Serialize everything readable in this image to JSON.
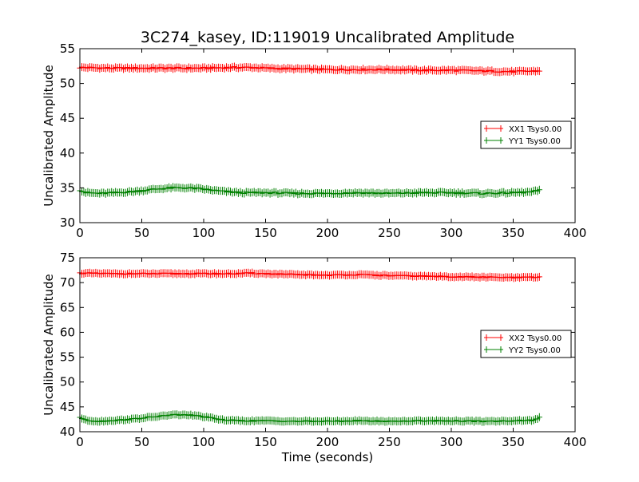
{
  "figure": {
    "title": "3C274_kasey, ID:119019 Uncalibrated Amplitude",
    "xlabel": "Time (seconds)"
  },
  "colors": {
    "red_series": "#ff0000",
    "green_series": "#008000",
    "axes": "#000000",
    "background": "#ffffff"
  },
  "chart_data": [
    {
      "type": "line",
      "marker": "plus",
      "ylabel": "Uncalibrated Amplitude",
      "xlim": [
        0,
        400
      ],
      "ylim": [
        30,
        55
      ],
      "xticks": [
        0,
        50,
        100,
        150,
        200,
        250,
        300,
        350,
        400
      ],
      "yticks": [
        30,
        35,
        40,
        45,
        50,
        55
      ],
      "legend_position": "right",
      "grid": false,
      "x_range": [
        0,
        372
      ],
      "series": [
        {
          "name": "XX1 Tsys0.00",
          "color": "#ff0000",
          "x": [
            0,
            25,
            50,
            75,
            100,
            125,
            140,
            150,
            175,
            200,
            225,
            250,
            275,
            300,
            325,
            350,
            372
          ],
          "y": [
            52.3,
            52.2,
            52.2,
            52.2,
            52.2,
            52.3,
            52.3,
            52.2,
            52.1,
            52.0,
            52.0,
            52.0,
            51.9,
            51.9,
            51.8,
            51.7,
            51.8
          ]
        },
        {
          "name": "YY1 Tsys0.00",
          "color": "#008000",
          "x": [
            0,
            5,
            15,
            30,
            45,
            60,
            75,
            85,
            95,
            105,
            115,
            130,
            150,
            175,
            200,
            225,
            250,
            275,
            300,
            325,
            350,
            365,
            372
          ],
          "y": [
            34.7,
            34.3,
            34.2,
            34.3,
            34.5,
            34.8,
            35.0,
            35.0,
            34.9,
            34.7,
            34.5,
            34.3,
            34.3,
            34.2,
            34.2,
            34.3,
            34.2,
            34.3,
            34.3,
            34.2,
            34.3,
            34.4,
            34.7
          ]
        }
      ]
    },
    {
      "type": "line",
      "marker": "plus",
      "ylabel": "Uncalibrated Amplitude",
      "xlabel": "Time (seconds)",
      "xlim": [
        0,
        400
      ],
      "ylim": [
        40,
        75
      ],
      "xticks": [
        0,
        50,
        100,
        150,
        200,
        250,
        300,
        350,
        400
      ],
      "yticks": [
        40,
        45,
        50,
        55,
        60,
        65,
        70,
        75
      ],
      "legend_position": "right",
      "grid": false,
      "x_range": [
        0,
        372
      ],
      "series": [
        {
          "name": "XX2 Tsys0.00",
          "color": "#ff0000",
          "x": [
            0,
            25,
            50,
            75,
            100,
            125,
            140,
            150,
            175,
            200,
            225,
            250,
            275,
            300,
            325,
            350,
            372
          ],
          "y": [
            71.9,
            71.8,
            71.8,
            71.8,
            71.8,
            71.8,
            71.9,
            71.8,
            71.6,
            71.5,
            71.6,
            71.4,
            71.3,
            71.2,
            71.1,
            71.0,
            71.1
          ]
        },
        {
          "name": "YY2 Tsys0.00",
          "color": "#008000",
          "x": [
            0,
            5,
            15,
            30,
            45,
            60,
            75,
            85,
            95,
            105,
            115,
            130,
            150,
            175,
            200,
            225,
            250,
            275,
            300,
            325,
            350,
            365,
            372
          ],
          "y": [
            42.9,
            42.3,
            42.1,
            42.3,
            42.6,
            43.0,
            43.4,
            43.4,
            43.2,
            42.8,
            42.4,
            42.2,
            42.2,
            42.1,
            42.1,
            42.2,
            42.1,
            42.2,
            42.2,
            42.1,
            42.2,
            42.3,
            42.9
          ]
        }
      ]
    }
  ]
}
